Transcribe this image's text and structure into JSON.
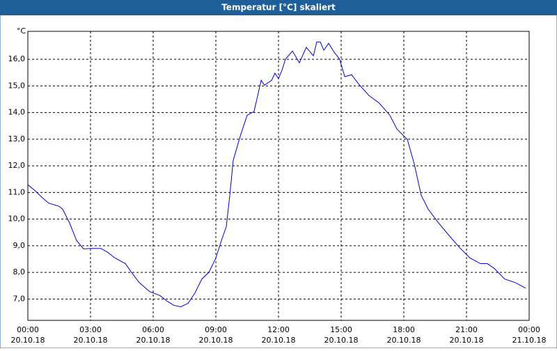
{
  "chart_data": {
    "type": "line",
    "title": "Temperatur [°C] skaliert",
    "y_unit": "°C",
    "x": [
      0,
      0.33,
      0.67,
      1,
      1.5,
      1.67,
      2,
      2.33,
      2.67,
      3,
      3.5,
      3.83,
      4.17,
      4.67,
      5,
      5.33,
      5.83,
      6.33,
      6.67,
      7,
      7.33,
      7.67,
      8,
      8.33,
      8.67,
      9,
      9.27,
      9.5,
      9.67,
      9.83,
      10.17,
      10.5,
      10.83,
      11.17,
      11.33,
      11.67,
      11.83,
      12,
      12.17,
      12.33,
      12.67,
      13,
      13.33,
      13.67,
      13.83,
      14,
      14.17,
      14.4,
      14.67,
      14.93,
      15.17,
      15.5,
      15.83,
      16.33,
      16.83,
      17.33,
      17.67,
      18.17,
      18.5,
      18.83,
      19.17,
      19.67,
      20.17,
      20.67,
      21.17,
      21.67,
      22,
      22.33,
      22.83,
      23.33,
      23.83
    ],
    "series": [
      {
        "color": "#0000cc",
        "values": [
          11.29,
          11.08,
          10.82,
          10.6,
          10.48,
          10.37,
          9.85,
          9.2,
          8.88,
          8.9,
          8.9,
          8.75,
          8.54,
          8.33,
          7.96,
          7.62,
          7.28,
          7.13,
          6.92,
          6.76,
          6.71,
          6.84,
          7.23,
          7.75,
          8.01,
          8.54,
          9.2,
          9.72,
          10.9,
          12.2,
          13.12,
          13.9,
          14.04,
          15.21,
          15.03,
          15.21,
          15.48,
          15.27,
          15.6,
          16.0,
          16.31,
          15.87,
          16.45,
          16.13,
          16.65,
          16.65,
          16.34,
          16.6,
          16.26,
          16.0,
          15.35,
          15.42,
          15.08,
          14.64,
          14.35,
          13.9,
          13.38,
          12.99,
          12.07,
          10.9,
          10.37,
          9.85,
          9.38,
          8.93,
          8.54,
          8.33,
          8.33,
          8.15,
          7.75,
          7.62,
          7.41
        ]
      }
    ],
    "xlim": [
      0,
      24
    ],
    "ylim": [
      6.2,
      17.05
    ],
    "xticks": [
      {
        "value": 0,
        "label": "00:00",
        "date": "20.10.18"
      },
      {
        "value": 3,
        "label": "03:00",
        "date": "20.10.18"
      },
      {
        "value": 6,
        "label": "06:00",
        "date": "20.10.18"
      },
      {
        "value": 9,
        "label": "09:00",
        "date": "20.10.18"
      },
      {
        "value": 12,
        "label": "12:00",
        "date": "20.10.18"
      },
      {
        "value": 15,
        "label": "15:00",
        "date": "20.10.18"
      },
      {
        "value": 18,
        "label": "18:00",
        "date": "20.10.18"
      },
      {
        "value": 21,
        "label": "21:00",
        "date": "20.10.18"
      },
      {
        "value": 24,
        "label": "00:00",
        "date": "21.10.18"
      }
    ],
    "yticks": [
      {
        "value": 7,
        "label": "7,0"
      },
      {
        "value": 8,
        "label": "8,0"
      },
      {
        "value": 9,
        "label": "9,0"
      },
      {
        "value": 10,
        "label": "10,0"
      },
      {
        "value": 11,
        "label": "11,0"
      },
      {
        "value": 12,
        "label": "12,0"
      },
      {
        "value": 13,
        "label": "13,0"
      },
      {
        "value": 14,
        "label": "14,0"
      },
      {
        "value": 15,
        "label": "15,0"
      },
      {
        "value": 16,
        "label": "16,0"
      }
    ],
    "grid": true
  }
}
